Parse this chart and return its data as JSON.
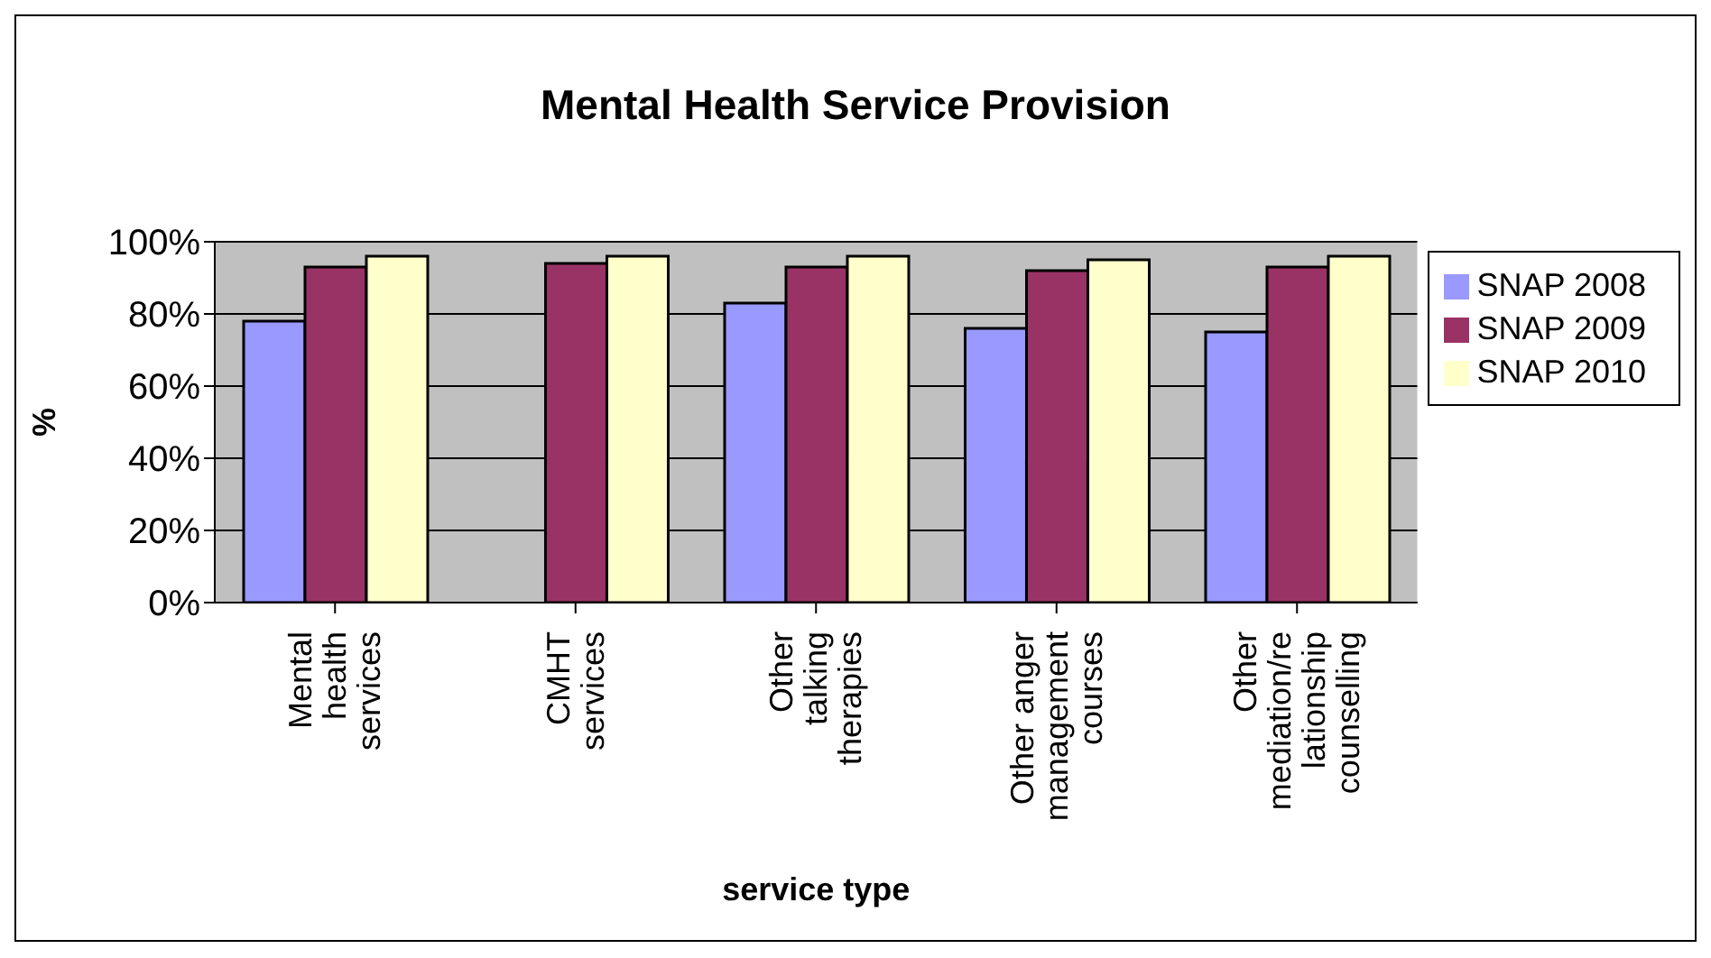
{
  "chart_data": {
    "type": "bar",
    "title": "Mental Health Service Provision",
    "xlabel": "service type",
    "ylabel": "%",
    "categories": [
      "Mental health services",
      "CMHT services",
      "Other talking therapies",
      "Other anger management courses",
      "Other mediation/relationship counselling"
    ],
    "series": [
      {
        "name": "SNAP 2008",
        "color": "#9999ff",
        "values": [
          78,
          null,
          83,
          76,
          75
        ]
      },
      {
        "name": "SNAP 2009",
        "color": "#993366",
        "values": [
          93,
          94,
          93,
          92,
          93
        ]
      },
      {
        "name": "SNAP 2010",
        "color": "#ffffcc",
        "values": [
          96,
          96,
          96,
          95,
          96
        ]
      }
    ],
    "ylim": [
      0,
      100
    ],
    "yticks": [
      {
        "value": 0,
        "label": "0%"
      },
      {
        "value": 20,
        "label": "20%"
      },
      {
        "value": 40,
        "label": "40%"
      },
      {
        "value": 60,
        "label": "60%"
      },
      {
        "value": 80,
        "label": "80%"
      },
      {
        "value": 100,
        "label": "100%"
      }
    ],
    "grid": "y",
    "legend": "right"
  }
}
